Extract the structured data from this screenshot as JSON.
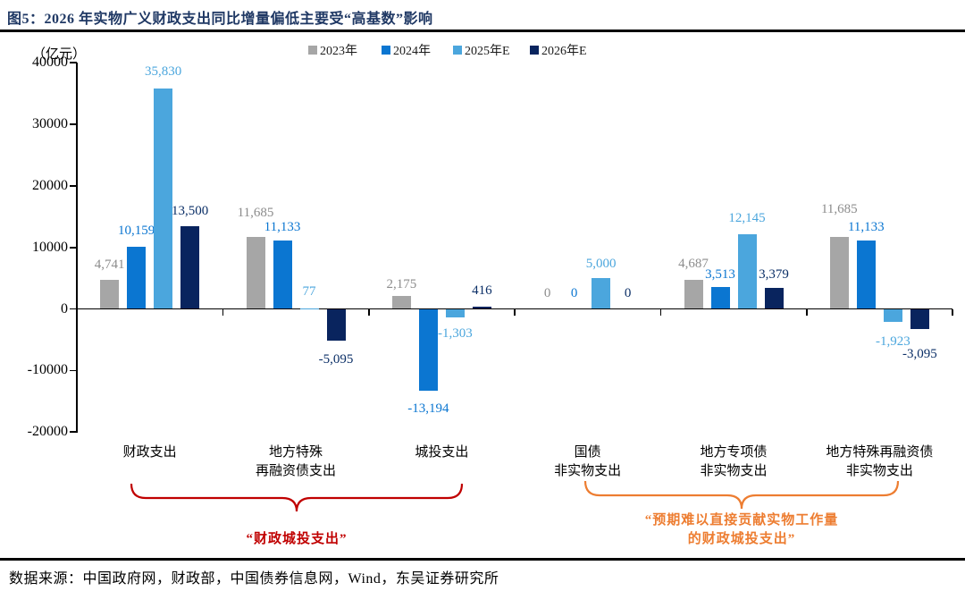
{
  "title": "图5：2026 年实物广义财政支出同比增量偏低主要受“高基数”影响",
  "title_color": "#1F3864",
  "source": "数据来源：中国政府网，财政部，中国债券信息网，Wind，东吴证券研究所",
  "chart_data": {
    "type": "bar",
    "unit_label": "（亿元）",
    "categories": [
      [
        "财政支出"
      ],
      [
        "地方特殊",
        "再融资债支出"
      ],
      [
        "城投支出"
      ],
      [
        "国债",
        "非实物支出"
      ],
      [
        "地方专项债",
        "非实物支出"
      ],
      [
        "地方特殊再融资债",
        "非实物支出"
      ]
    ],
    "series": [
      {
        "name": "2023年",
        "color": "#A6A6A6",
        "label_color": "#8C8C8C",
        "values": [
          4741,
          11685,
          2175,
          0,
          4687,
          11685
        ]
      },
      {
        "name": "2024年",
        "color": "#0B76D1",
        "label_color": "#0B76D1",
        "values": [
          10159,
          11133,
          -13194,
          0,
          3513,
          11133
        ]
      },
      {
        "name": "2025年E",
        "color": "#4BA6DD",
        "label_color": "#4BA6DD",
        "values": [
          35830,
          77,
          -1303,
          5000,
          12145,
          -1923
        ]
      },
      {
        "name": "2026年E",
        "color": "#09245E",
        "label_color": "#0A2E66",
        "values": [
          13500,
          -5095,
          416,
          0,
          3379,
          -3095
        ]
      }
    ],
    "y_ticks": [
      40000,
      30000,
      20000,
      10000,
      0,
      -10000,
      -20000
    ],
    "ylim": [
      -20000,
      40000
    ],
    "grid": false,
    "legend_position": "top",
    "annotations": {
      "left_brace": {
        "label": "“财政城投支出”",
        "color": "#C00000",
        "span_category_indexes": [
          0,
          2
        ]
      },
      "right_brace": {
        "label_line1": "“预期难以直接贡献实物工作量",
        "label_line2": "的财政城投支出”",
        "color": "#ED7D31",
        "span_category_indexes": [
          3,
          5
        ]
      }
    }
  }
}
